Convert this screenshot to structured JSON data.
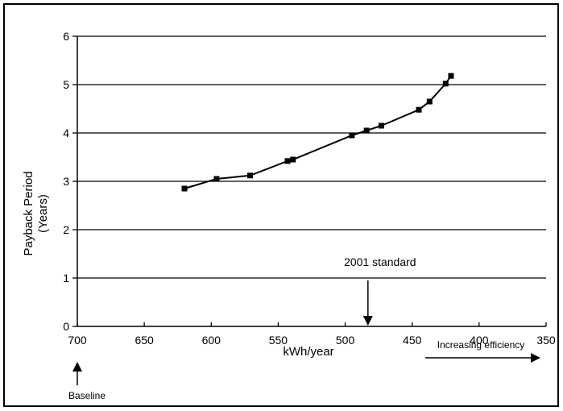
{
  "chart_data": {
    "type": "line",
    "title": "",
    "xlabel": "kWh/year",
    "ylabel": "Payback Period (Years)",
    "ylabel_line1": "Payback Period",
    "ylabel_line2": "(Years)",
    "x_reversed": true,
    "xlim": [
      700,
      350
    ],
    "ylim": [
      0,
      6
    ],
    "xticks": [
      "700",
      "650",
      "600",
      "550",
      "500",
      "450",
      "400",
      "350"
    ],
    "yticks": [
      "0",
      "1",
      "2",
      "3",
      "4",
      "5",
      "6"
    ],
    "grid": "horizontal",
    "series": [
      {
        "marker": "square",
        "x": [
          620,
          596,
          571,
          543,
          539,
          495,
          484,
          473,
          445,
          437,
          425,
          421
        ],
        "y": [
          2.85,
          3.05,
          3.12,
          3.42,
          3.45,
          3.95,
          4.05,
          4.15,
          4.48,
          4.65,
          5.02,
          5.18
        ]
      }
    ],
    "annotations": {
      "standard": {
        "text": "2001 standard",
        "x": 483
      },
      "baseline": {
        "text": "Baseline",
        "x": 700
      },
      "efficiency": {
        "text": "Increasing efficiency"
      }
    }
  }
}
